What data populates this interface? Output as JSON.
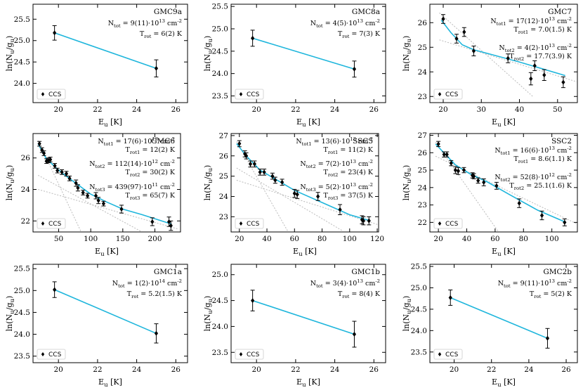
{
  "colors": {
    "fit": "#1fb6dc",
    "component": "#bbbbbb",
    "points": "#000000",
    "axes": "#000000"
  },
  "legend_label": "CCS",
  "xlabel": "E_u [K]",
  "ylabel": "ln(N_u/g_u)",
  "chart_data": [
    {
      "type": "scatter",
      "title": "GMC9a",
      "xlim": [
        18.7,
        26.6
      ],
      "ylim": [
        23.55,
        25.85
      ],
      "xticks": [
        20,
        22,
        24,
        26
      ],
      "yticks": [
        24.0,
        24.5,
        25.0,
        25.5
      ],
      "ydec": 1,
      "points": [
        {
          "x": 19.8,
          "y": 25.18,
          "err": 0.17
        },
        {
          "x": 25.0,
          "y": 24.35,
          "err": 0.2
        }
      ],
      "fit": [
        [
          19.8,
          25.18
        ],
        [
          25.0,
          24.35
        ]
      ],
      "components": [],
      "annotations": [
        {
          "text": "N_tot = 9(11)·10^13 cm^-2"
        },
        {
          "text": "T_rot = 6(2) K"
        }
      ]
    },
    {
      "type": "scatter",
      "title": "GMC8a",
      "xlim": [
        18.7,
        26.6
      ],
      "ylim": [
        23.35,
        25.55
      ],
      "xticks": [
        20,
        22,
        24,
        26
      ],
      "yticks": [
        23.5,
        24.0,
        24.5,
        25.0,
        25.5
      ],
      "ydec": 1,
      "points": [
        {
          "x": 19.8,
          "y": 24.79,
          "err": 0.18
        },
        {
          "x": 25.0,
          "y": 24.1,
          "err": 0.18
        }
      ],
      "fit": [
        [
          19.8,
          24.79
        ],
        [
          25.0,
          24.1
        ]
      ],
      "components": [],
      "annotations": [
        {
          "text": "N_tot = 4(5)·10^13 cm^-2"
        },
        {
          "text": "T_rot = 7(3) K"
        }
      ]
    },
    {
      "type": "scatter",
      "title": "GMC7",
      "xlim": [
        16.5,
        55.2
      ],
      "ylim": [
        22.75,
        26.75
      ],
      "xticks": [
        20,
        30,
        40,
        50
      ],
      "yticks": [
        23,
        24,
        25,
        26
      ],
      "ydec": 0,
      "points": [
        {
          "x": 20.0,
          "y": 26.15,
          "err": 0.18
        },
        {
          "x": 23.5,
          "y": 25.35,
          "err": 0.18
        },
        {
          "x": 25.5,
          "y": 25.62,
          "err": 0.18
        },
        {
          "x": 28.0,
          "y": 24.85,
          "err": 0.2
        },
        {
          "x": 37.0,
          "y": 24.55,
          "err": 0.18
        },
        {
          "x": 43.0,
          "y": 23.72,
          "err": 0.25
        },
        {
          "x": 44.0,
          "y": 24.25,
          "err": 0.2
        },
        {
          "x": 46.5,
          "y": 23.87,
          "err": 0.22
        },
        {
          "x": 51.5,
          "y": 23.58,
          "err": 0.22
        }
      ],
      "fit": [
        [
          19.5,
          26.1
        ],
        [
          22.0,
          25.6
        ],
        [
          25.0,
          25.1
        ],
        [
          28.0,
          24.9
        ],
        [
          40.0,
          24.4
        ],
        [
          52.0,
          23.85
        ]
      ],
      "components": [
        [
          [
            19.0,
            26.4
          ],
          [
            43.5,
            23.0
          ]
        ],
        [
          [
            19.0,
            25.3
          ],
          [
            55.0,
            23.6
          ]
        ]
      ],
      "annotations": [
        {
          "text": "N_tot1 = 17(12)·10^13 cm^-2"
        },
        {
          "text": "T_rot1 = 7.0(1.5) K"
        },
        {
          "text": "N_tot2 = 4(2)·10^13 cm^-2"
        },
        {
          "text": "T_rot2 = 17.7(3.9) K"
        }
      ]
    },
    {
      "type": "scatter",
      "title": "GMC6",
      "xlim": [
        10,
        240
      ],
      "ylim": [
        21.3,
        27.55
      ],
      "xticks": [
        50,
        100,
        150,
        200
      ],
      "yticks": [
        22,
        24,
        26
      ],
      "ydec": 0,
      "points": [
        {
          "x": 20,
          "y": 26.9,
          "err": 0.15
        },
        {
          "x": 24,
          "y": 26.5,
          "err": 0.15
        },
        {
          "x": 27,
          "y": 26.3,
          "err": 0.15
        },
        {
          "x": 31,
          "y": 25.8,
          "err": 0.15
        },
        {
          "x": 34,
          "y": 25.85,
          "err": 0.15
        },
        {
          "x": 37,
          "y": 25.9,
          "err": 0.15
        },
        {
          "x": 44,
          "y": 25.5,
          "err": 0.15
        },
        {
          "x": 48,
          "y": 25.2,
          "err": 0.15
        },
        {
          "x": 55,
          "y": 25.1,
          "err": 0.15
        },
        {
          "x": 62,
          "y": 25.0,
          "err": 0.15
        },
        {
          "x": 67,
          "y": 24.7,
          "err": 0.15
        },
        {
          "x": 77,
          "y": 24.4,
          "err": 0.2
        },
        {
          "x": 80,
          "y": 24.1,
          "err": 0.2
        },
        {
          "x": 88,
          "y": 23.8,
          "err": 0.15
        },
        {
          "x": 95,
          "y": 23.6,
          "err": 0.15
        },
        {
          "x": 108,
          "y": 23.6,
          "err": 0.2
        },
        {
          "x": 112,
          "y": 23.3,
          "err": 0.2
        },
        {
          "x": 120,
          "y": 23.1,
          "err": 0.15
        },
        {
          "x": 148,
          "y": 22.75,
          "err": 0.25
        },
        {
          "x": 196,
          "y": 21.95,
          "err": 0.25
        },
        {
          "x": 222,
          "y": 21.95,
          "err": 0.3
        },
        {
          "x": 225,
          "y": 21.7,
          "err": 0.3
        }
      ],
      "fit": [
        [
          18,
          26.9
        ],
        [
          30,
          26.0
        ],
        [
          45,
          25.4
        ],
        [
          60,
          24.9
        ],
        [
          80,
          24.3
        ],
        [
          100,
          23.7
        ],
        [
          125,
          23.2
        ],
        [
          150,
          22.75
        ],
        [
          180,
          22.4
        ],
        [
          226,
          21.8
        ]
      ],
      "components": [
        [
          [
            18,
            27.1
          ],
          [
            85,
            21.3
          ]
        ],
        [
          [
            18,
            24.9
          ],
          [
            180,
            21.3
          ]
        ],
        [
          [
            18,
            24.0
          ],
          [
            235,
            21.5
          ]
        ]
      ],
      "annotations": [
        {
          "text": "N_tot1 = 17(6)·10^13 cm^-2"
        },
        {
          "text": "T_rot1 = 12(2) K"
        },
        {
          "text": "N_tot2 = 112(14)·10^12 cm^-2"
        },
        {
          "text": "T_rot2 = 30(2) K"
        },
        {
          "text": "N_tot3 = 439(97)·10^11 cm^-2"
        },
        {
          "text": "T_rot3 = 65(7) K"
        }
      ]
    },
    {
      "type": "scatter",
      "title": "SSC5",
      "xlim": [
        14,
        121
      ],
      "ylim": [
        22.25,
        27.1
      ],
      "xticks": [
        20,
        40,
        60,
        80,
        100,
        120
      ],
      "yticks": [
        23,
        24,
        25,
        26,
        27
      ],
      "ydec": 0,
      "points": [
        {
          "x": 20,
          "y": 26.6,
          "err": 0.15
        },
        {
          "x": 24,
          "y": 26.1,
          "err": 0.15
        },
        {
          "x": 25,
          "y": 26.0,
          "err": 0.15
        },
        {
          "x": 28,
          "y": 25.6,
          "err": 0.15
        },
        {
          "x": 31,
          "y": 25.6,
          "err": 0.15
        },
        {
          "x": 35,
          "y": 25.2,
          "err": 0.15
        },
        {
          "x": 38,
          "y": 25.2,
          "err": 0.15
        },
        {
          "x": 44,
          "y": 25.0,
          "err": 0.15
        },
        {
          "x": 46,
          "y": 24.8,
          "err": 0.15
        },
        {
          "x": 51,
          "y": 24.7,
          "err": 0.15
        },
        {
          "x": 60,
          "y": 24.15,
          "err": 0.2
        },
        {
          "x": 62,
          "y": 24.1,
          "err": 0.2
        },
        {
          "x": 77,
          "y": 24.0,
          "err": 0.2
        },
        {
          "x": 93,
          "y": 23.35,
          "err": 0.25
        },
        {
          "x": 109,
          "y": 22.85,
          "err": 0.2
        },
        {
          "x": 110,
          "y": 22.8,
          "err": 0.2
        },
        {
          "x": 114,
          "y": 22.8,
          "err": 0.2
        }
      ],
      "fit": [
        [
          18,
          26.6
        ],
        [
          25,
          26.0
        ],
        [
          35,
          25.3
        ],
        [
          45,
          24.9
        ],
        [
          60,
          24.3
        ],
        [
          80,
          23.7
        ],
        [
          100,
          23.1
        ],
        [
          115,
          22.8
        ]
      ],
      "components": [
        [
          [
            18,
            26.7
          ],
          [
            55,
            22.3
          ]
        ],
        [
          [
            18,
            25.4
          ],
          [
            95,
            22.3
          ]
        ],
        [
          [
            18,
            24.8
          ],
          [
            121,
            22.6
          ]
        ]
      ],
      "annotations": [
        {
          "text": "N_tot1 = 13(6)·10^13 cm^-2"
        },
        {
          "text": "T_rot1 = 11(2) K"
        },
        {
          "text": "N_tot2 = 7(2)·10^13 cm^-2"
        },
        {
          "text": "T_rot2 = 23(4) K"
        },
        {
          "text": "N_tot3 = 5(2)·10^13 cm^-2"
        },
        {
          "text": "T_rot3 = 37(5) K"
        }
      ]
    },
    {
      "type": "scatter",
      "title": "SSC2",
      "xlim": [
        14,
        118
      ],
      "ylim": [
        21.45,
        27.1
      ],
      "xticks": [
        20,
        40,
        60,
        80,
        100
      ],
      "yticks": [
        22,
        23,
        24,
        25,
        26,
        27
      ],
      "ydec": 0,
      "points": [
        {
          "x": 20,
          "y": 26.5,
          "err": 0.15
        },
        {
          "x": 24,
          "y": 25.9,
          "err": 0.15
        },
        {
          "x": 26,
          "y": 25.9,
          "err": 0.15
        },
        {
          "x": 29,
          "y": 25.4,
          "err": 0.15
        },
        {
          "x": 32,
          "y": 25.0,
          "err": 0.2
        },
        {
          "x": 34,
          "y": 24.95,
          "err": 0.2
        },
        {
          "x": 38,
          "y": 25.0,
          "err": 0.15
        },
        {
          "x": 44,
          "y": 24.7,
          "err": 0.15
        },
        {
          "x": 45,
          "y": 24.65,
          "err": 0.15
        },
        {
          "x": 48,
          "y": 24.4,
          "err": 0.15
        },
        {
          "x": 52,
          "y": 24.3,
          "err": 0.2
        },
        {
          "x": 61,
          "y": 24.1,
          "err": 0.2
        },
        {
          "x": 77,
          "y": 23.1,
          "err": 0.25
        },
        {
          "x": 93,
          "y": 22.4,
          "err": 0.25
        },
        {
          "x": 109,
          "y": 22.0,
          "err": 0.2
        }
      ],
      "fit": [
        [
          18,
          26.5
        ],
        [
          25,
          25.9
        ],
        [
          32,
          25.3
        ],
        [
          42,
          24.8
        ],
        [
          55,
          24.3
        ],
        [
          70,
          23.6
        ],
        [
          90,
          22.7
        ],
        [
          110,
          22.0
        ]
      ],
      "components": [
        [
          [
            18,
            26.6
          ],
          [
            62,
            21.5
          ]
        ],
        [
          [
            18,
            25.8
          ],
          [
            118,
            21.9
          ]
        ]
      ],
      "annotations": [
        {
          "text": "N_tot1 = 16(6)·10^13 cm^-2"
        },
        {
          "text": "T_rot1 = 8.6(1.1) K"
        },
        {
          "text": "N_tot2 = 52(8)·10^12 cm^-2"
        },
        {
          "text": "T_rot2 = 25.1(1.6) K"
        }
      ]
    },
    {
      "type": "scatter",
      "title": "GMC1a",
      "xlim": [
        18.7,
        26.6
      ],
      "ylim": [
        23.35,
        25.6
      ],
      "xticks": [
        20,
        22,
        24,
        26
      ],
      "yticks": [
        23.5,
        24.0,
        24.5,
        25.0,
        25.5
      ],
      "ydec": 1,
      "points": [
        {
          "x": 19.8,
          "y": 25.02,
          "err": 0.18
        },
        {
          "x": 25.0,
          "y": 24.02,
          "err": 0.22
        }
      ],
      "fit": [
        [
          19.8,
          25.02
        ],
        [
          25.0,
          24.02
        ]
      ],
      "components": [],
      "annotations": [
        {
          "text": "N_tot = 1(2)·10^14 cm^-2"
        },
        {
          "text": "T_rot = 5.2(1.5) K"
        }
      ]
    },
    {
      "type": "scatter",
      "title": "GMC1b",
      "xlim": [
        18.7,
        26.6
      ],
      "ylim": [
        23.3,
        25.2
      ],
      "xticks": [
        20,
        22,
        24,
        26
      ],
      "yticks": [
        23.5,
        24.0,
        24.5,
        25.0
      ],
      "ydec": 1,
      "points": [
        {
          "x": 19.8,
          "y": 24.5,
          "err": 0.2
        },
        {
          "x": 25.0,
          "y": 23.85,
          "err": 0.25
        }
      ],
      "fit": [
        [
          19.8,
          24.5
        ],
        [
          25.0,
          23.85
        ]
      ],
      "components": [],
      "annotations": [
        {
          "text": "N_tot = 3(4)·10^13 cm^-2"
        },
        {
          "text": "T_rot = 8(4) K"
        }
      ]
    },
    {
      "type": "scatter",
      "title": "GMC2b",
      "xlim": [
        18.7,
        26.6
      ],
      "ylim": [
        23.25,
        25.55
      ],
      "xticks": [
        20,
        22,
        24,
        26
      ],
      "yticks": [
        23.5,
        24.0,
        24.5,
        25.0,
        25.5
      ],
      "ydec": 1,
      "points": [
        {
          "x": 19.8,
          "y": 24.77,
          "err": 0.18
        },
        {
          "x": 25.0,
          "y": 23.82,
          "err": 0.23
        }
      ],
      "fit": [
        [
          19.8,
          24.77
        ],
        [
          25.0,
          23.82
        ]
      ],
      "components": [],
      "annotations": [
        {
          "text": "N_tot = 9(11)·10^13 cm^-2"
        },
        {
          "text": "T_rot = 5(2) K"
        }
      ]
    }
  ]
}
